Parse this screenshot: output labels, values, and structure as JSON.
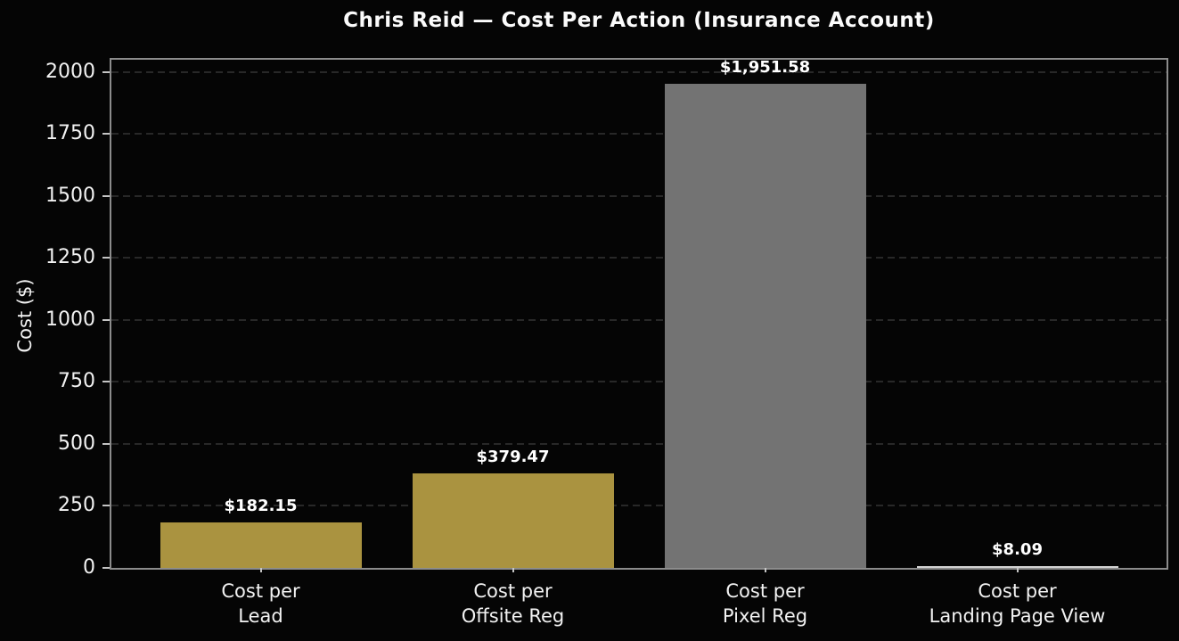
{
  "chart_data": {
    "type": "bar",
    "title": "Chris Reid — Cost Per Action (Insurance Account)",
    "xlabel": "",
    "ylabel": "Cost ($)",
    "categories": [
      "Cost per\nLead",
      "Cost per\nOffsite Reg",
      "Cost per\nPixel Reg",
      "Cost per\nLanding Page View"
    ],
    "values": [
      182.15,
      379.47,
      1951.58,
      8.09
    ],
    "value_labels": [
      "$182.15",
      "$379.47",
      "$1,951.58",
      "$8.09"
    ],
    "bar_colors": [
      "#aa9340",
      "#aa9340",
      "#737373",
      "#d3d3d3"
    ],
    "yticks": [
      0,
      250,
      500,
      750,
      1000,
      1250,
      1500,
      1750,
      2000
    ],
    "ylim": [
      0,
      2050
    ],
    "grid": "horizontal dashed",
    "legend": "none",
    "colors": {
      "background": "#050505",
      "spine": "#8c8c8c",
      "gridline": "#282828",
      "text": "#f2f2f2",
      "value_label_text": "#ffffff"
    }
  }
}
